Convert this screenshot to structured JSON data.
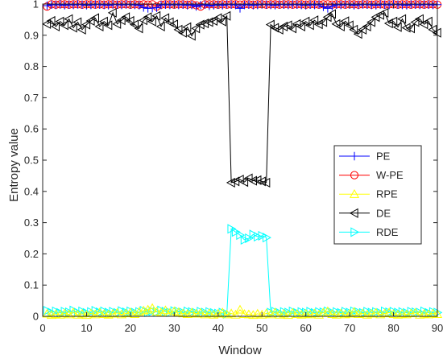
{
  "chart_data": {
    "type": "line",
    "xlabel": "Window",
    "ylabel": "Entropy value",
    "xlim": [
      0,
      90
    ],
    "ylim": [
      0,
      1
    ],
    "xticks": [
      0,
      10,
      20,
      30,
      40,
      50,
      60,
      70,
      80,
      90
    ],
    "yticks": [
      0,
      0.1,
      0.2,
      0.3,
      0.4,
      0.5,
      0.6,
      0.7,
      0.8,
      0.9,
      1
    ],
    "xtick_labels": [
      "0",
      "10",
      "20",
      "30",
      "40",
      "50",
      "60",
      "70",
      "80",
      "90"
    ],
    "ytick_labels": [
      "0",
      "0.1",
      "0.2",
      "0.3",
      "0.4",
      "0.5",
      "0.6",
      "0.7",
      "0.8",
      "0.9",
      "1"
    ],
    "grid": false,
    "legend_position": "right",
    "x": [
      1,
      2,
      3,
      4,
      5,
      6,
      7,
      8,
      9,
      10,
      11,
      12,
      13,
      14,
      15,
      16,
      17,
      18,
      19,
      20,
      21,
      22,
      23,
      24,
      25,
      26,
      27,
      28,
      29,
      30,
      31,
      32,
      33,
      34,
      35,
      36,
      37,
      38,
      39,
      40,
      41,
      42,
      43,
      44,
      45,
      46,
      47,
      48,
      49,
      50,
      51,
      52,
      53,
      54,
      55,
      56,
      57,
      58,
      59,
      60,
      61,
      62,
      63,
      64,
      65,
      66,
      67,
      68,
      69,
      70,
      71,
      72,
      73,
      74,
      75,
      76,
      77,
      78,
      79,
      80,
      81,
      82,
      83,
      84,
      85,
      86,
      87,
      88,
      89,
      90
    ],
    "series": [
      {
        "name": "PE",
        "color": "#0000ff",
        "marker": "plus",
        "values": [
          0.995,
          0.998,
          0.997,
          0.999,
          0.996,
          0.998,
          0.997,
          0.999,
          0.998,
          0.996,
          0.997,
          0.999,
          0.998,
          0.997,
          0.996,
          0.999,
          0.998,
          0.997,
          0.999,
          0.998,
          0.997,
          0.996,
          0.989,
          0.986,
          0.987,
          0.988,
          0.997,
          0.998,
          0.997,
          0.999,
          0.997,
          0.998,
          0.996,
          0.997,
          0.992,
          0.997,
          0.998,
          0.994,
          0.996,
          0.998,
          0.996,
          0.999,
          0.998,
          0.997,
          0.986,
          0.997,
          0.998,
          0.996,
          0.997,
          0.999,
          0.998,
          0.997,
          0.996,
          0.999,
          0.998,
          0.997,
          0.999,
          0.998,
          0.997,
          0.996,
          0.998,
          0.997,
          0.999,
          0.991,
          0.986,
          0.993,
          0.998,
          0.997,
          0.999,
          0.998,
          0.996,
          0.997,
          0.999,
          0.998,
          0.997,
          0.996,
          0.999,
          0.998,
          0.997,
          0.999,
          0.998,
          0.997,
          0.996,
          0.999,
          0.998,
          0.997,
          0.999,
          0.998,
          0.997,
          0.998
        ]
      },
      {
        "name": "W-PE",
        "color": "#ff0000",
        "marker": "circle",
        "values": [
          0.992,
          0.999,
          0.998,
          0.999,
          0.999,
          0.998,
          0.999,
          0.999,
          0.998,
          0.999,
          0.999,
          0.998,
          0.999,
          0.998,
          0.999,
          0.999,
          0.998,
          0.999,
          0.999,
          0.998,
          0.999,
          0.998,
          0.999,
          0.998,
          0.999,
          0.992,
          0.998,
          0.999,
          0.999,
          0.998,
          0.999,
          0.999,
          0.998,
          0.999,
          0.996,
          0.992,
          0.999,
          0.999,
          0.999,
          0.998,
          0.999,
          0.998,
          0.999,
          0.999,
          0.998,
          0.999,
          0.999,
          0.998,
          0.999,
          0.999,
          0.998,
          0.999,
          0.999,
          0.998,
          0.999,
          0.999,
          0.998,
          0.999,
          0.999,
          0.998,
          0.999,
          0.999,
          0.998,
          0.999,
          0.999,
          0.998,
          0.999,
          0.999,
          0.998,
          0.999,
          0.999,
          0.998,
          0.999,
          0.999,
          0.998,
          0.999,
          0.999,
          0.998,
          0.999,
          0.999,
          0.998,
          0.999,
          0.999,
          0.998,
          0.999,
          0.999,
          0.998,
          0.999,
          0.999,
          0.998
        ]
      },
      {
        "name": "RPE",
        "color": "#ffff00",
        "marker": "triangle-up",
        "values": [
          0.008,
          0.004,
          0.007,
          0.005,
          0.009,
          0.006,
          0.012,
          0.005,
          0.008,
          0.004,
          0.009,
          0.006,
          0.012,
          0.007,
          0.005,
          0.008,
          0.011,
          0.006,
          0.009,
          0.012,
          0.007,
          0.014,
          0.018,
          0.021,
          0.026,
          0.015,
          0.012,
          0.019,
          0.011,
          0.016,
          0.013,
          0.009,
          0.007,
          0.012,
          0.008,
          0.011,
          0.006,
          0.009,
          0.005,
          0.008,
          0.012,
          0.006,
          0.009,
          0.005,
          0.021,
          0.007,
          0.006,
          0.004,
          0.008,
          0.005,
          0.009,
          0.006,
          0.012,
          0.005,
          0.008,
          0.004,
          0.011,
          0.007,
          0.005,
          0.008,
          0.006,
          0.009,
          0.005,
          0.012,
          0.016,
          0.007,
          0.005,
          0.009,
          0.006,
          0.008,
          0.014,
          0.007,
          0.009,
          0.005,
          0.008,
          0.011,
          0.006,
          0.009,
          0.012,
          0.007,
          0.005,
          0.008,
          0.006,
          0.009,
          0.011,
          0.005,
          0.008,
          0.006,
          0.009,
          0.007
        ]
      },
      {
        "name": "DE",
        "color": "#000000",
        "marker": "triangle-left",
        "values": [
          0.936,
          0.946,
          0.928,
          0.944,
          0.932,
          0.952,
          0.924,
          0.942,
          0.918,
          0.934,
          0.946,
          0.955,
          0.928,
          0.944,
          0.932,
          0.972,
          0.936,
          0.948,
          0.958,
          0.946,
          0.934,
          0.922,
          0.948,
          0.958,
          0.944,
          0.962,
          0.928,
          0.955,
          0.942,
          0.935,
          0.918,
          0.908,
          0.926,
          0.898,
          0.922,
          0.934,
          0.938,
          0.942,
          0.946,
          0.955,
          0.944,
          0.962,
          0.428,
          0.432,
          0.438,
          0.43,
          0.442,
          0.434,
          0.436,
          0.432,
          0.428,
          0.934,
          0.924,
          0.918,
          0.928,
          0.932,
          0.922,
          0.936,
          0.928,
          0.944,
          0.932,
          0.948,
          0.935,
          0.942,
          0.958,
          0.968,
          0.936,
          0.928,
          0.945,
          0.932,
          0.918,
          0.904,
          0.918,
          0.928,
          0.942,
          0.958,
          0.965,
          0.972,
          0.938,
          0.944,
          0.926,
          0.952,
          0.924,
          0.922,
          0.942,
          0.952,
          0.935,
          0.944,
          0.918,
          0.908
        ]
      },
      {
        "name": "RDE",
        "color": "#00ffff",
        "marker": "triangle-right",
        "values": [
          0.018,
          0.012,
          0.016,
          0.011,
          0.015,
          0.013,
          0.019,
          0.012,
          0.016,
          0.011,
          0.014,
          0.018,
          0.013,
          0.016,
          0.012,
          0.015,
          0.011,
          0.017,
          0.013,
          0.016,
          0.012,
          0.014,
          0.018,
          0.013,
          0.016,
          0.014,
          0.019,
          0.015,
          0.013,
          0.017,
          0.015,
          0.012,
          0.016,
          0.014,
          0.011,
          0.015,
          0.012,
          0.014,
          0.011,
          0.009,
          0.012,
          0.008,
          0.28,
          0.27,
          0.26,
          0.245,
          0.25,
          0.262,
          0.255,
          0.258,
          0.252,
          0.012,
          0.015,
          0.011,
          0.014,
          0.012,
          0.016,
          0.011,
          0.014,
          0.012,
          0.015,
          0.011,
          0.014,
          0.013,
          0.016,
          0.012,
          0.014,
          0.011,
          0.015,
          0.012,
          0.016,
          0.013,
          0.011,
          0.015,
          0.012,
          0.014,
          0.011,
          0.016,
          0.013,
          0.015,
          0.012,
          0.014,
          0.011,
          0.015,
          0.013,
          0.012,
          0.016,
          0.011,
          0.014,
          0.012
        ]
      }
    ]
  }
}
